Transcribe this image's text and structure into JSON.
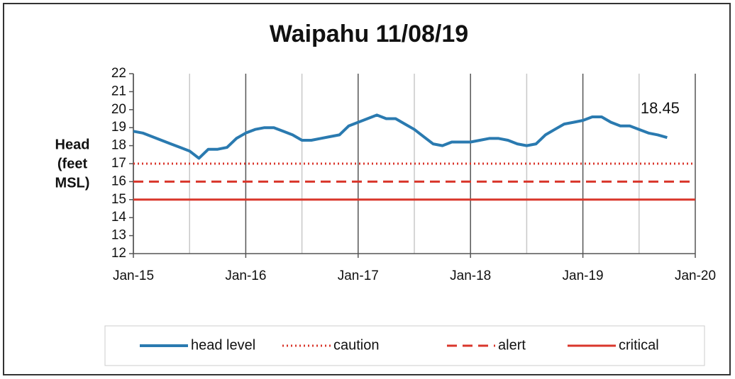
{
  "chart_data": {
    "type": "line",
    "title": "Waipahu 11/08/19",
    "ylabel": [
      "Head",
      "(feet",
      "MSL)"
    ],
    "x": [
      "2015-01",
      "2015-02",
      "2015-03",
      "2015-04",
      "2015-05",
      "2015-06",
      "2015-07",
      "2015-08",
      "2015-09",
      "2015-10",
      "2015-11",
      "2015-12",
      "2016-01",
      "2016-02",
      "2016-03",
      "2016-04",
      "2016-05",
      "2016-06",
      "2016-07",
      "2016-08",
      "2016-09",
      "2016-10",
      "2016-11",
      "2016-12",
      "2017-01",
      "2017-02",
      "2017-03",
      "2017-04",
      "2017-05",
      "2017-06",
      "2017-07",
      "2017-08",
      "2017-09",
      "2017-10",
      "2017-11",
      "2017-12",
      "2018-01",
      "2018-02",
      "2018-03",
      "2018-04",
      "2018-05",
      "2018-06",
      "2018-07",
      "2018-08",
      "2018-09",
      "2018-10",
      "2018-11",
      "2018-12",
      "2019-01",
      "2019-02",
      "2019-03",
      "2019-04",
      "2019-05",
      "2019-06",
      "2019-07",
      "2019-08",
      "2019-09",
      "2019-10"
    ],
    "series": [
      {
        "name": "head level",
        "color": "#2a7ab0",
        "values": [
          18.8,
          18.7,
          18.5,
          18.3,
          18.1,
          17.9,
          17.7,
          17.3,
          17.8,
          17.8,
          17.9,
          18.4,
          18.7,
          18.9,
          19.0,
          19.0,
          18.8,
          18.6,
          18.3,
          18.3,
          18.4,
          18.5,
          18.6,
          19.1,
          19.3,
          19.5,
          19.7,
          19.5,
          19.5,
          19.2,
          18.9,
          18.5,
          18.1,
          18.0,
          18.2,
          18.2,
          18.2,
          18.3,
          18.4,
          18.4,
          18.3,
          18.1,
          18.0,
          18.1,
          18.6,
          18.9,
          19.2,
          19.3,
          19.4,
          19.6,
          19.6,
          19.3,
          19.1,
          19.1,
          18.9,
          18.7,
          18.6,
          18.45
        ]
      }
    ],
    "thresholds": [
      {
        "name": "caution",
        "value": 17,
        "color": "#d9362b",
        "dash": "dotted"
      },
      {
        "name": "alert",
        "value": 16,
        "color": "#d9362b",
        "dash": "dashed"
      },
      {
        "name": "critical",
        "value": 15,
        "color": "#d9362b",
        "dash": "solid"
      }
    ],
    "annotations": [
      {
        "x": "2019-10",
        "value": 18.45,
        "label": "18.45"
      }
    ],
    "xlim": [
      "2015-01",
      "2020-01"
    ],
    "xticks": [
      {
        "value": "2015-01",
        "label": "Jan-15"
      },
      {
        "value": "2016-01",
        "label": "Jan-16"
      },
      {
        "value": "2017-01",
        "label": "Jan-17"
      },
      {
        "value": "2018-01",
        "label": "Jan-18"
      },
      {
        "value": "2019-01",
        "label": "Jan-19"
      },
      {
        "value": "2020-01",
        "label": "Jan-20"
      }
    ],
    "x_minor_ticks": [
      "2015-07",
      "2016-07",
      "2017-07",
      "2018-07",
      "2019-07"
    ],
    "ylim": [
      12,
      22
    ],
    "yticks": [
      12,
      13,
      14,
      15,
      16,
      17,
      18,
      19,
      20,
      21,
      22
    ],
    "legend": "bottom"
  }
}
